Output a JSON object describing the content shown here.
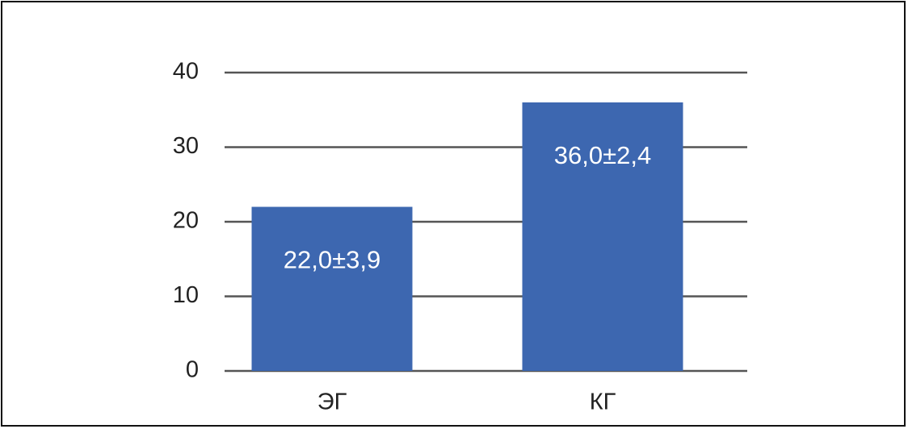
{
  "chart_data": {
    "type": "bar",
    "categories": [
      "ЭГ",
      "КГ"
    ],
    "values": [
      22,
      36
    ],
    "value_labels": [
      "22,0±3,9",
      "36,0±2,4"
    ],
    "color": "#3d67b0",
    "ylim": [
      0,
      40
    ],
    "yticks": [
      0,
      10,
      20,
      30,
      40
    ],
    "grid": true
  }
}
